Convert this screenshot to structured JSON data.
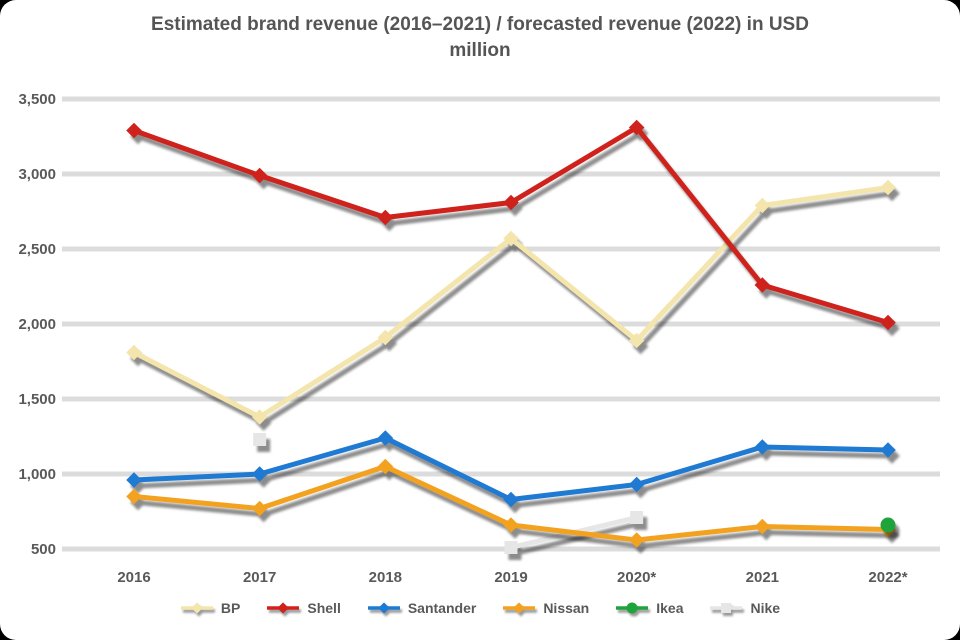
{
  "title": {
    "line1": "Estimated brand revenue (2016–2021) / forecasted revenue (2022) in USD",
    "line2": "million"
  },
  "chart_data": {
    "type": "line",
    "categories": [
      "2016",
      "2017",
      "2018",
      "2019",
      "2020*",
      "2021",
      "2022*"
    ],
    "y_ticks": [
      "500",
      "1,000",
      "1,500",
      "2,000",
      "2,500",
      "3,000",
      "3,500"
    ],
    "ylim": [
      500,
      3500
    ],
    "grid": true,
    "legend_position": "bottom",
    "series": [
      {
        "name": "BP",
        "color": "#f3e5ab",
        "marker": "diamond",
        "values": [
          1810,
          1380,
          1910,
          2570,
          1890,
          2790,
          2910
        ]
      },
      {
        "name": "Shell",
        "color": "#d0221c",
        "marker": "diamond",
        "values": [
          3290,
          2990,
          2710,
          2810,
          3310,
          2260,
          2010
        ]
      },
      {
        "name": "Santander",
        "color": "#1e7ad2",
        "marker": "diamond",
        "values": [
          960,
          1000,
          1240,
          830,
          930,
          1180,
          1160
        ]
      },
      {
        "name": "Nissan",
        "color": "#f3a21f",
        "marker": "diamond",
        "values": [
          850,
          770,
          1050,
          660,
          560,
          650,
          630
        ]
      },
      {
        "name": "Ikea",
        "color": "#1ea43b",
        "marker": "circle",
        "values": [
          null,
          null,
          null,
          null,
          null,
          null,
          660
        ]
      },
      {
        "name": "Nike",
        "color": "#e6e6e6",
        "marker": "square",
        "values": [
          null,
          1230,
          null,
          510,
          710,
          null,
          null
        ]
      }
    ]
  },
  "colors": {
    "background": "#ffffff",
    "page_frame": "#000000",
    "gridline": "#dcdcdc",
    "title_text": "#555555",
    "tick_text": "#595959"
  }
}
